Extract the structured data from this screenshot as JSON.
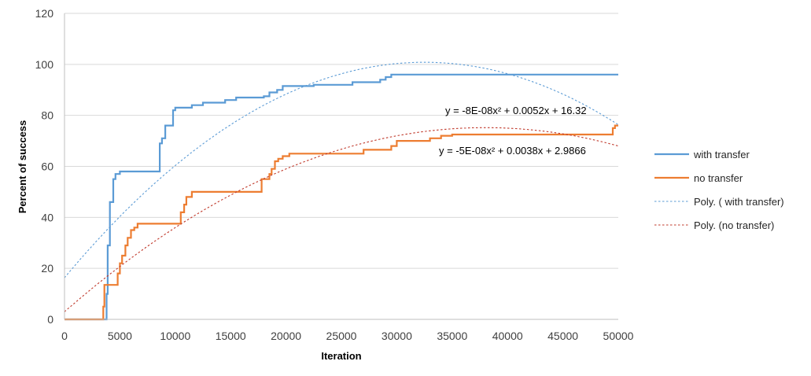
{
  "chart_data": {
    "type": "line",
    "xlabel": "Iteration",
    "ylabel": "Percent of success",
    "xlim": [
      0,
      50000
    ],
    "ylim": [
      0,
      120
    ],
    "xticks": [
      "0",
      "5000",
      "10000",
      "15000",
      "20000",
      "25000",
      "30000",
      "35000",
      "40000",
      "45000",
      "50000"
    ],
    "yticks": [
      "0",
      "20",
      "40",
      "60",
      "80",
      "100",
      "120"
    ],
    "grid": "horizontal",
    "legend_position": "right",
    "series": [
      {
        "name": " with transfer",
        "color": "#5B9BD5",
        "style": "solid",
        "points": [
          [
            0,
            0
          ],
          [
            3800,
            0
          ],
          [
            3800,
            10
          ],
          [
            3900,
            10
          ],
          [
            3900,
            29
          ],
          [
            4100,
            29
          ],
          [
            4100,
            46
          ],
          [
            4400,
            46
          ],
          [
            4400,
            55
          ],
          [
            4600,
            55
          ],
          [
            4600,
            57
          ],
          [
            5000,
            57
          ],
          [
            5000,
            58
          ],
          [
            8600,
            58
          ],
          [
            8600,
            69
          ],
          [
            8800,
            69
          ],
          [
            8800,
            71
          ],
          [
            9100,
            71
          ],
          [
            9100,
            76
          ],
          [
            9800,
            76
          ],
          [
            9800,
            82
          ],
          [
            10000,
            82
          ],
          [
            10000,
            83
          ],
          [
            11500,
            83
          ],
          [
            11500,
            84
          ],
          [
            12500,
            84
          ],
          [
            12500,
            85
          ],
          [
            14500,
            85
          ],
          [
            14500,
            86
          ],
          [
            15500,
            86
          ],
          [
            15500,
            87
          ],
          [
            18000,
            87
          ],
          [
            18000,
            87.5
          ],
          [
            18500,
            87.5
          ],
          [
            18500,
            89
          ],
          [
            19200,
            89
          ],
          [
            19200,
            90
          ],
          [
            19700,
            90
          ],
          [
            19700,
            91.5
          ],
          [
            22500,
            91.5
          ],
          [
            22500,
            92
          ],
          [
            26000,
            92
          ],
          [
            26000,
            93
          ],
          [
            28500,
            93
          ],
          [
            28500,
            94
          ],
          [
            29000,
            94
          ],
          [
            29000,
            95
          ],
          [
            29500,
            95
          ],
          [
            29500,
            96
          ],
          [
            50000,
            96
          ]
        ]
      },
      {
        "name": "no transfer",
        "color": "#ED7D31",
        "style": "solid",
        "points": [
          [
            0,
            0
          ],
          [
            3500,
            0
          ],
          [
            3500,
            5
          ],
          [
            3600,
            5
          ],
          [
            3600,
            13.5
          ],
          [
            4800,
            13.5
          ],
          [
            4800,
            18
          ],
          [
            5000,
            18
          ],
          [
            5000,
            22
          ],
          [
            5200,
            22
          ],
          [
            5200,
            25
          ],
          [
            5500,
            25
          ],
          [
            5500,
            29
          ],
          [
            5700,
            29
          ],
          [
            5700,
            32
          ],
          [
            6000,
            32
          ],
          [
            6000,
            35
          ],
          [
            6300,
            35
          ],
          [
            6300,
            36
          ],
          [
            6600,
            36
          ],
          [
            6600,
            37.5
          ],
          [
            10500,
            37.5
          ],
          [
            10500,
            42
          ],
          [
            10800,
            42
          ],
          [
            10800,
            45
          ],
          [
            11000,
            45
          ],
          [
            11000,
            48
          ],
          [
            11500,
            48
          ],
          [
            11500,
            50
          ],
          [
            17800,
            50
          ],
          [
            17800,
            55
          ],
          [
            18500,
            55
          ],
          [
            18500,
            57
          ],
          [
            18700,
            57
          ],
          [
            18700,
            59
          ],
          [
            19000,
            59
          ],
          [
            19000,
            62
          ],
          [
            19300,
            62
          ],
          [
            19300,
            63
          ],
          [
            19700,
            63
          ],
          [
            19700,
            64
          ],
          [
            20300,
            64
          ],
          [
            20300,
            65
          ],
          [
            27000,
            65
          ],
          [
            27000,
            66.5
          ],
          [
            29500,
            66.5
          ],
          [
            29500,
            68
          ],
          [
            30000,
            68
          ],
          [
            30000,
            70
          ],
          [
            33000,
            70
          ],
          [
            33000,
            71
          ],
          [
            34000,
            71
          ],
          [
            34000,
            72
          ],
          [
            35000,
            72
          ],
          [
            35000,
            72.5
          ],
          [
            49500,
            72.5
          ],
          [
            49500,
            75
          ],
          [
            49700,
            75
          ],
          [
            49700,
            76
          ],
          [
            50000,
            76
          ]
        ]
      },
      {
        "name": "Poly. ( with transfer)",
        "color": "#5B9BD5",
        "style": "dotted",
        "coefficients": {
          "a": -8e-08,
          "b": 0.0052,
          "c": 16.32
        }
      },
      {
        "name": "Poly. (no transfer)",
        "color": "#C0392B",
        "style": "dotted",
        "coefficients": {
          "a": -5e-08,
          "b": 0.0038,
          "c": 2.9866
        }
      }
    ],
    "annotations": [
      {
        "text": "y = -8E-08x² + 0.0052x + 16.32",
        "series": "Poly. ( with transfer)"
      },
      {
        "text": "y = -5E-08x² + 0.0038x + 2.9866",
        "series": "Poly. (no transfer)"
      }
    ]
  }
}
